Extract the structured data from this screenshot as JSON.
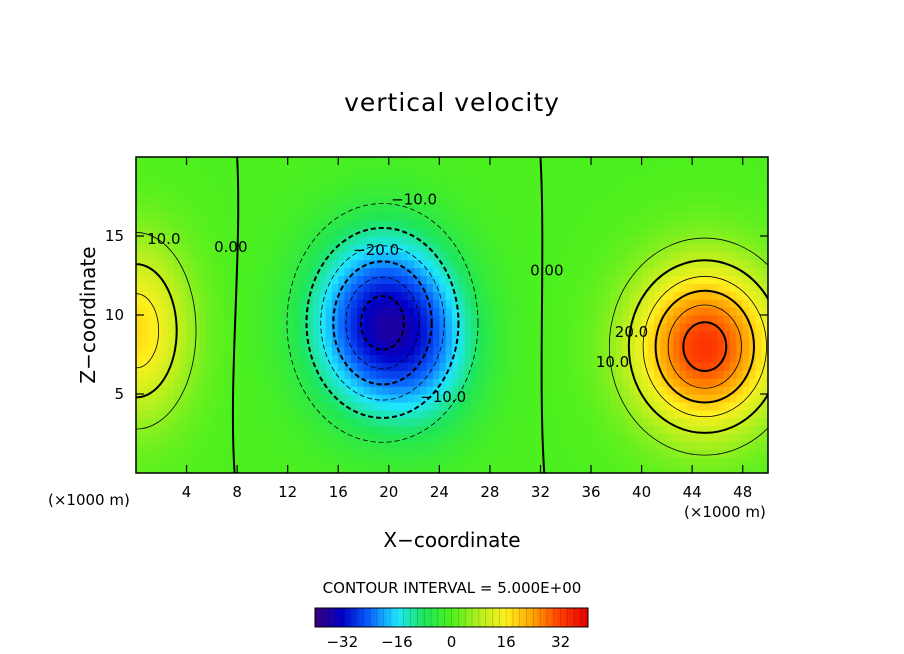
{
  "chart_data": {
    "type": "heatmap",
    "title": "vertical velocity",
    "xlabel": "X−coordinate",
    "ylabel": "Z−coordinate",
    "x_unit_label": "(×1000 m)",
    "z_unit_label": "(×1000 m)",
    "xlim": [
      0,
      50
    ],
    "ylim": [
      0,
      20
    ],
    "x_ticks": [
      "4",
      "8",
      "12",
      "16",
      "20",
      "24",
      "28",
      "32",
      "36",
      "40",
      "44",
      "48"
    ],
    "x_tick_values": [
      4,
      8,
      12,
      16,
      20,
      24,
      28,
      32,
      36,
      40,
      44,
      48
    ],
    "y_ticks": [
      "5",
      "10",
      "15"
    ],
    "y_tick_values": [
      5,
      10,
      15
    ],
    "contour_interval_text": "CONTOUR INTERVAL = 5.000E+00",
    "contour_interval": 5.0,
    "colorbar": {
      "ticks": [
        "−32",
        "−16",
        "0",
        "16",
        "32"
      ],
      "tick_values": [
        -32,
        -16,
        0,
        16,
        32
      ],
      "range": [
        -40,
        40
      ],
      "colormap": [
        "#3a007a",
        "#0000c8",
        "#0a64ff",
        "#1ee6ff",
        "#1ee65a",
        "#4cf01e",
        "#b4f01e",
        "#fff01e",
        "#ffa000",
        "#ff3c00",
        "#e60000"
      ]
    },
    "contour_labels": [
      {
        "text": "−10.0",
        "x": 22.0,
        "z": 17.0
      },
      {
        "text": "−20.0",
        "x": 19.0,
        "z": 13.8
      },
      {
        "text": "10.0",
        "x": 2.2,
        "z": 14.5
      },
      {
        "text": "0.00",
        "x": 7.5,
        "z": 14.0
      },
      {
        "text": "0.00",
        "x": 32.5,
        "z": 12.5
      },
      {
        "text": "−10.0",
        "x": 24.3,
        "z": 4.5
      },
      {
        "text": "20.0",
        "x": 39.2,
        "z": 8.6
      },
      {
        "text": "10.0",
        "x": 37.7,
        "z": 6.7
      }
    ],
    "extrema": [
      {
        "kind": "min",
        "x": 19.5,
        "z": 9.5,
        "value": -32
      },
      {
        "kind": "max",
        "x": 45.0,
        "z": 8.0,
        "value": 32
      },
      {
        "kind": "max",
        "x": 0.0,
        "z": 9.0,
        "value": 18
      }
    ]
  }
}
